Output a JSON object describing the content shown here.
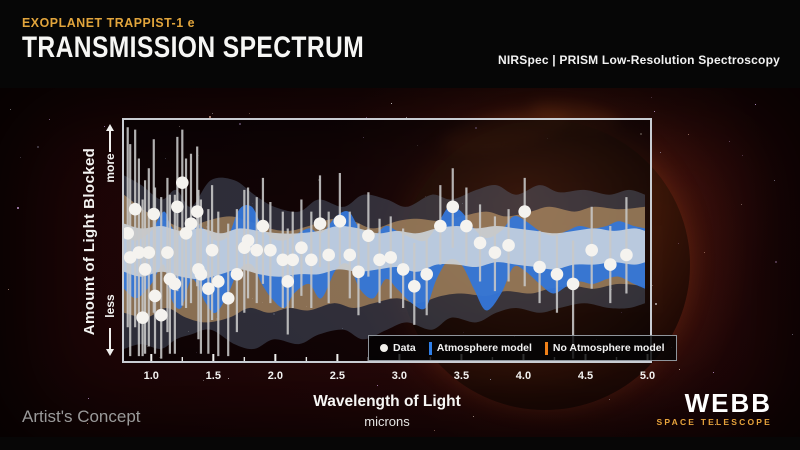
{
  "header": {
    "kicker": "EXOPLANET TRAPPIST-1 e",
    "title": "TRANSMISSION SPECTRUM",
    "subtitle": "NIRSpec | PRISM Low-Resolution Spectroscopy"
  },
  "annotations": {
    "artists_concept": "Artist's Concept",
    "logo_name": "WEBB",
    "logo_sub": "SPACE TELESCOPE"
  },
  "chart_data": {
    "type": "scatter",
    "title": "TRANSMISSION SPECTRUM",
    "xlabel": "Wavelength of Light",
    "x_unit_label": "microns",
    "ylabel": "Amount of Light Blocked",
    "y_annotations": [
      "more",
      "less"
    ],
    "x_range": [
      0.78,
      5.02
    ],
    "x_ticks": [
      "1.0",
      "1.5",
      "2.0",
      "2.5",
      "3.0",
      "3.5",
      "4.0",
      "4.5",
      "5.0"
    ],
    "grid": false,
    "legend_position": "bottom-right-inside",
    "legend": [
      {
        "label": "Data",
        "swatch": "dot",
        "color": "#f2f0ec"
      },
      {
        "label": "Atmosphere model",
        "swatch": "bar",
        "color": "#2f7fe8"
      },
      {
        "label": "No Atmosphere model",
        "swatch": "bar",
        "color": "#f08018"
      }
    ],
    "y_scale_note": "relative amount of light blocked, 0 = less (bottom) to 1 = more (top); eu/ed are error-bar extents in same units",
    "points": [
      {
        "w": 0.81,
        "b": 0.53,
        "eu": 0.44,
        "ed": 0.39
      },
      {
        "w": 0.83,
        "b": 0.43,
        "eu": 0.47,
        "ed": 0.41
      },
      {
        "w": 0.87,
        "b": 0.63,
        "eu": 0.33,
        "ed": 0.49
      },
      {
        "w": 0.9,
        "b": 0.45,
        "eu": 0.39,
        "ed": 0.43
      },
      {
        "w": 0.93,
        "b": 0.18,
        "eu": 0.49,
        "ed": 0.16
      },
      {
        "w": 0.95,
        "b": 0.38,
        "eu": 0.37,
        "ed": 0.35
      },
      {
        "w": 0.98,
        "b": 0.45,
        "eu": 0.35,
        "ed": 0.39
      },
      {
        "w": 1.02,
        "b": 0.61,
        "eu": 0.31,
        "ed": 0.41
      },
      {
        "w": 1.03,
        "b": 0.27,
        "eu": 0.45,
        "ed": 0.24
      },
      {
        "w": 1.08,
        "b": 0.19,
        "eu": 0.49,
        "ed": 0.18
      },
      {
        "w": 1.13,
        "b": 0.45,
        "eu": 0.31,
        "ed": 0.33
      },
      {
        "w": 1.15,
        "b": 0.34,
        "eu": 0.35,
        "ed": 0.31
      },
      {
        "w": 1.19,
        "b": 0.32,
        "eu": 0.37,
        "ed": 0.29
      },
      {
        "w": 1.21,
        "b": 0.64,
        "eu": 0.29,
        "ed": 0.35
      },
      {
        "w": 1.25,
        "b": 0.74,
        "eu": 0.22,
        "ed": 0.51
      },
      {
        "w": 1.28,
        "b": 0.53,
        "eu": 0.31,
        "ed": 0.31
      },
      {
        "w": 1.32,
        "b": 0.57,
        "eu": 0.29,
        "ed": 0.33
      },
      {
        "w": 1.37,
        "b": 0.62,
        "eu": 0.27,
        "ed": 0.31
      },
      {
        "w": 1.38,
        "b": 0.38,
        "eu": 0.33,
        "ed": 0.29
      },
      {
        "w": 1.4,
        "b": 0.36,
        "eu": 0.31,
        "ed": 0.33
      },
      {
        "w": 1.46,
        "b": 0.3,
        "eu": 0.33,
        "ed": 0.27
      },
      {
        "w": 1.49,
        "b": 0.46,
        "eu": 0.27,
        "ed": 0.29
      },
      {
        "w": 1.54,
        "b": 0.33,
        "eu": 0.29,
        "ed": 0.31
      },
      {
        "w": 1.62,
        "b": 0.26,
        "eu": 0.31,
        "ed": 0.24
      },
      {
        "w": 1.69,
        "b": 0.36,
        "eu": 0.27,
        "ed": 0.24
      },
      {
        "w": 1.75,
        "b": 0.47,
        "eu": 0.24,
        "ed": 0.27
      },
      {
        "w": 1.78,
        "b": 0.5,
        "eu": 0.22,
        "ed": 0.24
      },
      {
        "w": 1.85,
        "b": 0.46,
        "eu": 0.22,
        "ed": 0.22
      },
      {
        "w": 1.9,
        "b": 0.56,
        "eu": 0.2,
        "ed": 0.24
      },
      {
        "w": 1.96,
        "b": 0.46,
        "eu": 0.2,
        "ed": 0.22
      },
      {
        "w": 2.06,
        "b": 0.42,
        "eu": 0.2,
        "ed": 0.2
      },
      {
        "w": 2.1,
        "b": 0.33,
        "eu": 0.22,
        "ed": 0.22
      },
      {
        "w": 2.14,
        "b": 0.42,
        "eu": 0.2,
        "ed": 0.2
      },
      {
        "w": 2.21,
        "b": 0.47,
        "eu": 0.2,
        "ed": 0.2
      },
      {
        "w": 2.29,
        "b": 0.42,
        "eu": 0.2,
        "ed": 0.2
      },
      {
        "w": 2.36,
        "b": 0.57,
        "eu": 0.2,
        "ed": 0.18
      },
      {
        "w": 2.43,
        "b": 0.44,
        "eu": 0.18,
        "ed": 0.2
      },
      {
        "w": 2.52,
        "b": 0.58,
        "eu": 0.2,
        "ed": 0.18
      },
      {
        "w": 2.6,
        "b": 0.44,
        "eu": 0.18,
        "ed": 0.18
      },
      {
        "w": 2.67,
        "b": 0.37,
        "eu": 0.2,
        "ed": 0.18
      },
      {
        "w": 2.75,
        "b": 0.52,
        "eu": 0.18,
        "ed": 0.17
      },
      {
        "w": 2.84,
        "b": 0.42,
        "eu": 0.17,
        "ed": 0.18
      },
      {
        "w": 2.93,
        "b": 0.43,
        "eu": 0.17,
        "ed": 0.17
      },
      {
        "w": 3.03,
        "b": 0.38,
        "eu": 0.17,
        "ed": 0.16
      },
      {
        "w": 3.12,
        "b": 0.31,
        "eu": 0.18,
        "ed": 0.16
      },
      {
        "w": 3.22,
        "b": 0.36,
        "eu": 0.16,
        "ed": 0.17
      },
      {
        "w": 3.33,
        "b": 0.56,
        "eu": 0.17,
        "ed": 0.16
      },
      {
        "w": 3.43,
        "b": 0.64,
        "eu": 0.16,
        "ed": 0.17
      },
      {
        "w": 3.54,
        "b": 0.56,
        "eu": 0.16,
        "ed": 0.16
      },
      {
        "w": 3.65,
        "b": 0.49,
        "eu": 0.16,
        "ed": 0.16
      },
      {
        "w": 3.77,
        "b": 0.45,
        "eu": 0.15,
        "ed": 0.16
      },
      {
        "w": 3.88,
        "b": 0.48,
        "eu": 0.15,
        "ed": 0.15
      },
      {
        "w": 4.01,
        "b": 0.62,
        "eu": 0.14,
        "ed": 0.31
      },
      {
        "w": 4.13,
        "b": 0.39,
        "eu": 0.15,
        "ed": 0.15
      },
      {
        "w": 4.27,
        "b": 0.36,
        "eu": 0.16,
        "ed": 0.16
      },
      {
        "w": 4.4,
        "b": 0.32,
        "eu": 0.18,
        "ed": 0.31
      },
      {
        "w": 4.55,
        "b": 0.46,
        "eu": 0.18,
        "ed": 0.16
      },
      {
        "w": 4.7,
        "b": 0.4,
        "eu": 0.16,
        "ed": 0.16
      },
      {
        "w": 4.83,
        "b": 0.44,
        "eu": 0.24,
        "ed": 0.16
      }
    ],
    "bands": [
      {
        "name": "atmosphere-model-outer-uncertainty",
        "color": "rgba(96,116,142,0.38)",
        "pts": [
          [
            0.78,
            0.77,
            0.05
          ],
          [
            0.92,
            0.73,
            0.07
          ],
          [
            1.08,
            0.67,
            0.05
          ],
          [
            1.2,
            0.71,
            0.09
          ],
          [
            1.32,
            0.64,
            0.11
          ],
          [
            1.48,
            0.75,
            0.13
          ],
          [
            1.67,
            0.75,
            0.07
          ],
          [
            1.83,
            0.69,
            0.05
          ],
          [
            1.99,
            0.64,
            0.09
          ],
          [
            2.19,
            0.62,
            0.07
          ],
          [
            2.35,
            0.67,
            0.11
          ],
          [
            2.55,
            0.64,
            0.13
          ],
          [
            2.71,
            0.69,
            0.09
          ],
          [
            2.9,
            0.67,
            0.13
          ],
          [
            3.06,
            0.64,
            0.16
          ],
          [
            3.26,
            0.69,
            0.13
          ],
          [
            3.42,
            0.67,
            0.18
          ],
          [
            3.62,
            0.71,
            0.16
          ],
          [
            3.78,
            0.73,
            0.2
          ],
          [
            3.94,
            0.69,
            0.22
          ],
          [
            4.13,
            0.73,
            0.2
          ],
          [
            4.29,
            0.7,
            0.22
          ],
          [
            4.49,
            0.71,
            0.24
          ],
          [
            4.69,
            0.69,
            0.22
          ],
          [
            4.85,
            0.71,
            0.22
          ],
          [
            4.98,
            0.69,
            0.24
          ]
        ]
      },
      {
        "name": "no-atmosphere-model-uncertainty",
        "color": "rgba(214,166,106,0.55)",
        "pts": [
          [
            0.78,
            0.69,
            0.2
          ],
          [
            0.96,
            0.62,
            0.18
          ],
          [
            1.12,
            0.58,
            0.22
          ],
          [
            1.28,
            0.55,
            0.18
          ],
          [
            1.44,
            0.58,
            0.16
          ],
          [
            1.63,
            0.6,
            0.18
          ],
          [
            1.79,
            0.58,
            0.22
          ],
          [
            1.95,
            0.55,
            0.2
          ],
          [
            2.11,
            0.54,
            0.22
          ],
          [
            2.27,
            0.56,
            0.21
          ],
          [
            2.47,
            0.59,
            0.24
          ],
          [
            2.63,
            0.58,
            0.22
          ],
          [
            2.79,
            0.55,
            0.24
          ],
          [
            2.98,
            0.58,
            0.26
          ],
          [
            3.14,
            0.59,
            0.24
          ],
          [
            3.34,
            0.58,
            0.27
          ],
          [
            3.5,
            0.6,
            0.28
          ],
          [
            3.7,
            0.62,
            0.27
          ],
          [
            3.86,
            0.6,
            0.29
          ],
          [
            4.06,
            0.62,
            0.28
          ],
          [
            4.21,
            0.64,
            0.3
          ],
          [
            4.41,
            0.62,
            0.31
          ],
          [
            4.57,
            0.64,
            0.3
          ],
          [
            4.77,
            0.63,
            0.32
          ],
          [
            4.98,
            0.64,
            0.31
          ]
        ]
      },
      {
        "name": "atmosphere-model",
        "color": "rgba(52,118,216,0.95)",
        "pts": [
          [
            0.78,
            0.52,
            0.3
          ],
          [
            0.88,
            0.5,
            0.26
          ],
          [
            1.0,
            0.54,
            0.32
          ],
          [
            1.1,
            0.62,
            0.4
          ],
          [
            1.16,
            0.56,
            0.26
          ],
          [
            1.24,
            0.52,
            0.22
          ],
          [
            1.33,
            0.58,
            0.34
          ],
          [
            1.44,
            0.54,
            0.24
          ],
          [
            1.52,
            0.5,
            0.2
          ],
          [
            1.62,
            0.52,
            0.28
          ],
          [
            1.71,
            0.63,
            0.38
          ],
          [
            1.81,
            0.64,
            0.4
          ],
          [
            1.89,
            0.56,
            0.32
          ],
          [
            1.97,
            0.51,
            0.26
          ],
          [
            2.07,
            0.5,
            0.22
          ],
          [
            2.15,
            0.52,
            0.28
          ],
          [
            2.27,
            0.55,
            0.32
          ],
          [
            2.37,
            0.53,
            0.26
          ],
          [
            2.49,
            0.6,
            0.38
          ],
          [
            2.59,
            0.62,
            0.4
          ],
          [
            2.68,
            0.55,
            0.3
          ],
          [
            2.79,
            0.52,
            0.26
          ],
          [
            2.89,
            0.56,
            0.34
          ],
          [
            2.98,
            0.54,
            0.3
          ],
          [
            3.1,
            0.51,
            0.24
          ],
          [
            3.21,
            0.5,
            0.22
          ],
          [
            3.3,
            0.56,
            0.34
          ],
          [
            3.4,
            0.64,
            0.42
          ],
          [
            3.5,
            0.62,
            0.4
          ],
          [
            3.6,
            0.55,
            0.3
          ],
          [
            3.7,
            0.51,
            0.21
          ],
          [
            3.82,
            0.54,
            0.28
          ],
          [
            3.92,
            0.6,
            0.39
          ],
          [
            4.02,
            0.58,
            0.37
          ],
          [
            4.13,
            0.54,
            0.32
          ],
          [
            4.24,
            0.52,
            0.28
          ],
          [
            4.35,
            0.54,
            0.31
          ],
          [
            4.45,
            0.56,
            0.33
          ],
          [
            4.56,
            0.55,
            0.32
          ],
          [
            4.67,
            0.56,
            0.34
          ],
          [
            4.77,
            0.58,
            0.35
          ],
          [
            4.89,
            0.56,
            0.32
          ],
          [
            4.98,
            0.55,
            0.3
          ]
        ]
      },
      {
        "name": "no-atmosphere-model",
        "color": "rgba(208,216,224,0.85)",
        "pts": [
          [
            0.78,
            0.57,
            0.37
          ],
          [
            0.92,
            0.55,
            0.35
          ],
          [
            1.08,
            0.56,
            0.37
          ],
          [
            1.24,
            0.54,
            0.35
          ],
          [
            1.4,
            0.55,
            0.34
          ],
          [
            1.56,
            0.53,
            0.36
          ],
          [
            1.71,
            0.55,
            0.38
          ],
          [
            1.87,
            0.54,
            0.36
          ],
          [
            2.03,
            0.53,
            0.35
          ],
          [
            2.19,
            0.53,
            0.36
          ],
          [
            2.35,
            0.54,
            0.36
          ],
          [
            2.51,
            0.56,
            0.38
          ],
          [
            2.67,
            0.55,
            0.37
          ],
          [
            2.83,
            0.53,
            0.38
          ],
          [
            2.98,
            0.54,
            0.39
          ],
          [
            3.14,
            0.53,
            0.37
          ],
          [
            3.3,
            0.55,
            0.4
          ],
          [
            3.46,
            0.56,
            0.4
          ],
          [
            3.62,
            0.55,
            0.39
          ],
          [
            3.78,
            0.56,
            0.41
          ],
          [
            3.94,
            0.55,
            0.4
          ],
          [
            4.1,
            0.54,
            0.39
          ],
          [
            4.25,
            0.53,
            0.38
          ],
          [
            4.41,
            0.54,
            0.4
          ],
          [
            4.57,
            0.55,
            0.4
          ],
          [
            4.73,
            0.54,
            0.41
          ],
          [
            4.89,
            0.55,
            0.4
          ],
          [
            4.98,
            0.54,
            0.41
          ]
        ]
      }
    ],
    "point_style": {
      "dot_color": "#f5f3ef",
      "dot_radius": 6.3,
      "errorbar_color": "#c9c9c9"
    }
  }
}
